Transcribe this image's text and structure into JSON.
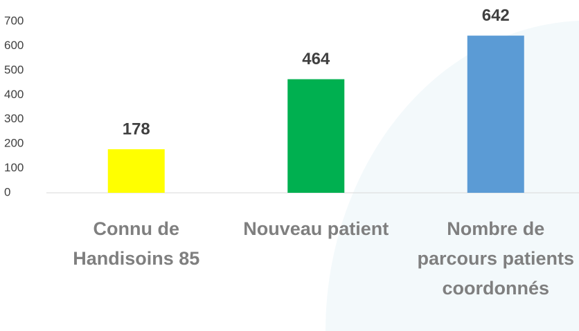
{
  "chart_data": {
    "type": "bar",
    "categories": [
      "Connu de Handisoins 85",
      "Nouveau patient",
      "Nombre de parcours patients coordonnés"
    ],
    "values": [
      178,
      464,
      642
    ],
    "colors": [
      "#ffff00",
      "#00b050",
      "#5b9bd5"
    ],
    "ylim": [
      0,
      700
    ],
    "yticks": [
      0,
      100,
      200,
      300,
      400,
      500,
      600,
      700
    ],
    "grid": false
  }
}
